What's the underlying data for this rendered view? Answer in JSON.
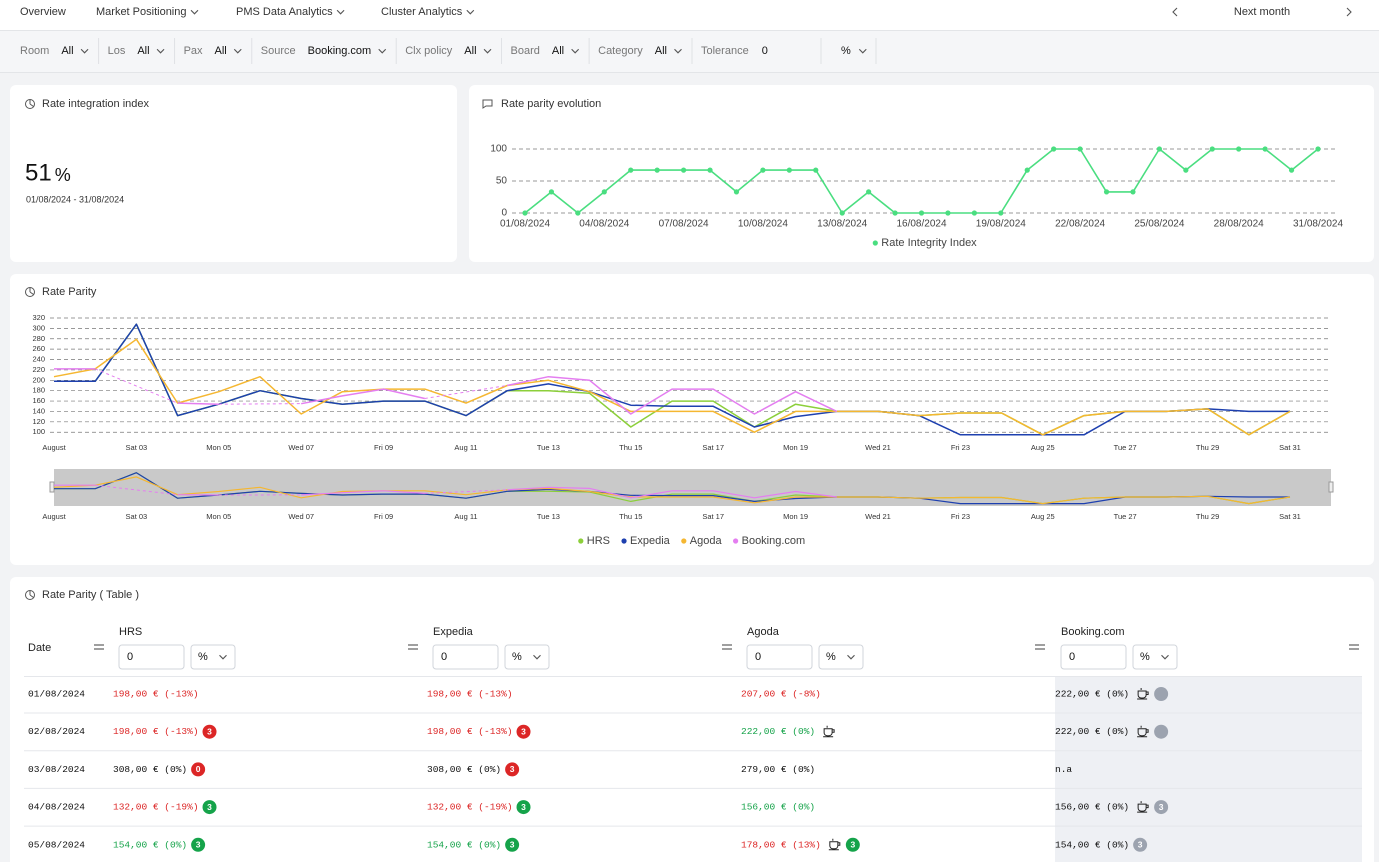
{
  "nav": {
    "items": [
      {
        "label": "Overview",
        "menu": false
      },
      {
        "label": "Market Positioning",
        "menu": true
      },
      {
        "label": "PMS Data Analytics",
        "menu": true
      },
      {
        "label": "Cluster Analytics",
        "menu": true
      }
    ],
    "period": "Next month"
  },
  "filters": [
    {
      "label": "Room",
      "value": "All"
    },
    {
      "label": "Los",
      "value": "All"
    },
    {
      "label": "Pax",
      "value": "All"
    },
    {
      "label": "Source",
      "value": "Booking.com"
    },
    {
      "label": "Clx policy",
      "value": "All"
    },
    {
      "label": "Board",
      "value": "All"
    },
    {
      "label": "Category",
      "value": "All"
    }
  ],
  "tolerance": {
    "label": "Tolerance",
    "value": "0",
    "unit": "%"
  },
  "kpi": {
    "title": "Rate integration index",
    "value": "51",
    "unit": "%",
    "period": "01/08/2024 - 31/08/2024"
  },
  "chart_data": [
    {
      "type": "line",
      "title": "Rate parity evolution",
      "categories": [
        "01/08/2024",
        null,
        null,
        "04/08/2024",
        null,
        null,
        "07/08/2024",
        null,
        null,
        "10/08/2024",
        null,
        null,
        "13/08/2024",
        null,
        null,
        "16/08/2024",
        null,
        null,
        "19/08/2024",
        null,
        null,
        "22/08/2024",
        null,
        null,
        "25/08/2024",
        null,
        null,
        "28/08/2024",
        null,
        null,
        "31/08/2024"
      ],
      "series": [
        {
          "name": "Rate Integrity Index",
          "color": "#4ade80",
          "values": [
            0,
            33,
            0,
            33,
            67,
            67,
            67,
            67,
            33,
            67,
            67,
            67,
            0,
            33,
            0,
            0,
            0,
            0,
            0,
            67,
            100,
            100,
            33,
            33,
            100,
            67,
            100,
            100,
            100,
            67,
            100
          ]
        }
      ],
      "ylim": [
        0,
        100
      ],
      "yticks": [
        0,
        50,
        100
      ],
      "grid": true,
      "markers": true
    },
    {
      "type": "line",
      "title": "Rate Parity",
      "categories": [
        "August",
        null,
        "Sat 03",
        null,
        "Mon 05",
        null,
        "Wed 07",
        null,
        "Fri 09",
        null,
        "Aug 11",
        null,
        "Tue 13",
        null,
        "Thu 15",
        null,
        "Sat 17",
        null,
        "Mon 19",
        null,
        "Wed 21",
        null,
        "Fri 23",
        null,
        "Aug 25",
        null,
        "Tue 27",
        null,
        "Thu 29",
        null,
        "Sat 31"
      ],
      "series": [
        {
          "name": "HRS",
          "color": "#8ccf3a",
          "values": [
            198,
            198,
            308,
            132,
            154,
            180,
            165,
            154,
            160,
            160,
            132,
            180,
            180,
            175,
            110,
            160,
            160,
            110,
            154,
            140,
            140,
            132,
            137,
            137,
            95,
            132,
            140,
            140,
            145,
            95,
            140
          ]
        },
        {
          "name": "Expedia",
          "color": "#1e40af",
          "values": [
            198,
            198,
            308,
            132,
            154,
            180,
            165,
            154,
            160,
            160,
            132,
            180,
            193,
            178,
            152,
            150,
            150,
            110,
            130,
            140,
            140,
            132,
            95,
            95,
            95,
            95,
            140,
            140,
            145,
            140,
            140
          ]
        },
        {
          "name": "Agoda",
          "color": "#f5b731",
          "values": [
            207,
            222,
            279,
            156,
            178,
            207,
            135,
            178,
            183,
            183,
            156,
            190,
            200,
            178,
            140,
            140,
            140,
            100,
            140,
            140,
            140,
            132,
            137,
            137,
            95,
            132,
            140,
            140,
            145,
            95,
            140
          ]
        },
        {
          "name": "Booking.com",
          "color": "#e47ef0",
          "values": [
            222,
            222,
            null,
            156,
            154,
            null,
            155,
            170,
            183,
            165,
            null,
            190,
            207,
            200,
            135,
            183,
            183,
            135,
            178,
            140,
            null,
            null,
            null,
            null,
            null,
            null,
            null,
            null,
            null,
            null,
            null
          ]
        }
      ],
      "ylim": [
        85,
        320
      ],
      "yticks": [
        100,
        120,
        140,
        160,
        180,
        200,
        220,
        240,
        260,
        280,
        300,
        320
      ],
      "grid": true,
      "markers": false,
      "zoom_slider": true
    }
  ],
  "table": {
    "title": "Rate Parity ( Table )",
    "columns": [
      {
        "label": "Date"
      },
      {
        "label": "HRS",
        "filter": "0",
        "unit": "%"
      },
      {
        "label": "Expedia",
        "filter": "0",
        "unit": "%"
      },
      {
        "label": "Agoda",
        "filter": "0",
        "unit": "%"
      },
      {
        "label": "Booking.com",
        "filter": "0",
        "unit": "%"
      }
    ],
    "rows": [
      {
        "date": "01/08/2024",
        "cells": [
          {
            "text": "198,00 € (-13%)",
            "tone": "red"
          },
          {
            "text": "198,00 € (-13%)",
            "tone": "red"
          },
          {
            "text": "207,00 € (-8%)",
            "tone": "red"
          },
          {
            "text": "222,00 € (0%)",
            "tone": "neutral",
            "cup": true,
            "badge_tone": "gray"
          }
        ]
      },
      {
        "date": "02/08/2024",
        "cells": [
          {
            "text": "198,00 € (-13%)",
            "tone": "red",
            "badge": "3",
            "badge_tone": "red"
          },
          {
            "text": "198,00 € (-13%)",
            "tone": "red",
            "badge": "3",
            "badge_tone": "red"
          },
          {
            "text": "222,00 € (0%)",
            "tone": "green",
            "cup": true
          },
          {
            "text": "222,00 € (0%)",
            "tone": "neutral",
            "cup": true,
            "badge_tone": "gray"
          }
        ]
      },
      {
        "date": "03/08/2024",
        "cells": [
          {
            "text": "308,00 € (0%)",
            "tone": "neutral",
            "badge": "0",
            "badge_tone": "red"
          },
          {
            "text": "308,00 € (0%)",
            "tone": "neutral",
            "badge": "3",
            "badge_tone": "red"
          },
          {
            "text": "279,00 € (0%)",
            "tone": "neutral"
          },
          {
            "text": "n.a",
            "tone": "neutral"
          }
        ]
      },
      {
        "date": "04/08/2024",
        "cells": [
          {
            "text": "132,00 € (-19%)",
            "tone": "red",
            "badge": "3",
            "badge_tone": "green"
          },
          {
            "text": "132,00 € (-19%)",
            "tone": "red",
            "badge": "3",
            "badge_tone": "green"
          },
          {
            "text": "156,00 € (0%)",
            "tone": "green"
          },
          {
            "text": "156,00 € (0%)",
            "tone": "neutral",
            "cup": true,
            "badge": "3",
            "badge_tone": "gray"
          }
        ]
      },
      {
        "date": "05/08/2024",
        "cells": [
          {
            "text": "154,00 € (0%)",
            "tone": "green",
            "badge": "3",
            "badge_tone": "green"
          },
          {
            "text": "154,00 € (0%)",
            "tone": "green",
            "badge": "3",
            "badge_tone": "green"
          },
          {
            "text": "178,00 € (13%)",
            "tone": "red",
            "cup": true,
            "badge": "3",
            "badge_tone": "green"
          },
          {
            "text": "154,00 € (0%)",
            "tone": "neutral",
            "badge": "3",
            "badge_tone": "gray"
          }
        ]
      }
    ]
  }
}
